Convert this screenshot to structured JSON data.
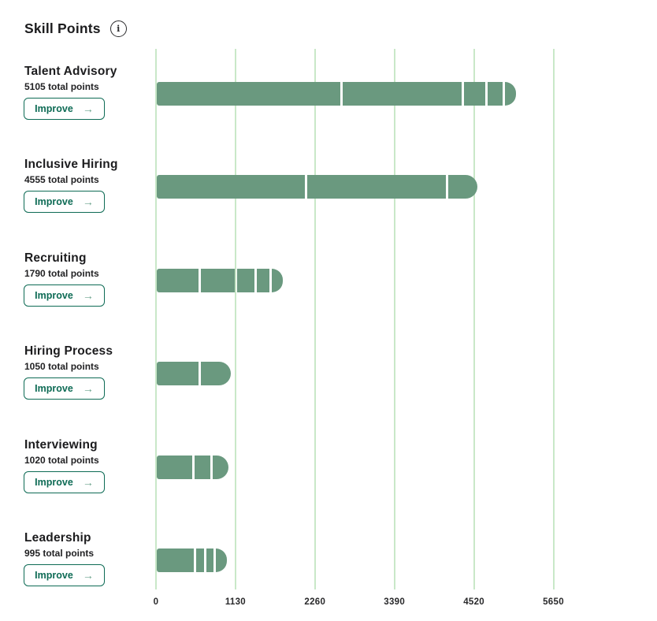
{
  "header": {
    "title": "Skill Points",
    "info_glyph": "i"
  },
  "buttons": {
    "improve_label": "Improve",
    "arrow_glyph": "→"
  },
  "colors": {
    "bar": "#6a997f",
    "gridline": "#c9e8c8",
    "button_green": "#0e6b55",
    "arrow_green": "#6ba28c",
    "text_dark": "#1c1c1e"
  },
  "chart_data": {
    "type": "bar",
    "orientation": "horizontal",
    "title": "Skill Points",
    "xlabel": "",
    "ylabel": "",
    "xlim": [
      0,
      5650
    ],
    "x_ticks": [
      0,
      1130,
      2260,
      3390,
      4520,
      5650
    ],
    "x_tick_labels": [
      "0",
      "1130",
      "2260",
      "3390",
      "4520",
      "5650"
    ],
    "grid": true,
    "legend": false,
    "rows": [
      {
        "label": "Talent Advisory",
        "total": 5105,
        "subtitle": "5105 total points",
        "segments": [
          2630,
          1720,
          340,
          240,
          175
        ]
      },
      {
        "label": "Inclusive Hiring",
        "total": 4555,
        "subtitle": "4555 total points",
        "segments": [
          2120,
          2005,
          430
        ]
      },
      {
        "label": "Recruiting",
        "total": 1790,
        "subtitle": "1790 total points",
        "segments": [
          615,
          515,
          280,
          205,
          175
        ]
      },
      {
        "label": "Hiring Process",
        "total": 1050,
        "subtitle": "1050 total points",
        "segments": [
          615,
          435
        ]
      },
      {
        "label": "Interviewing",
        "total": 1020,
        "subtitle": "1020 total points",
        "segments": [
          525,
          250,
          245
        ]
      },
      {
        "label": "Leadership",
        "total": 995,
        "subtitle": "995 total points",
        "segments": [
          545,
          145,
          135,
          170
        ]
      }
    ]
  }
}
